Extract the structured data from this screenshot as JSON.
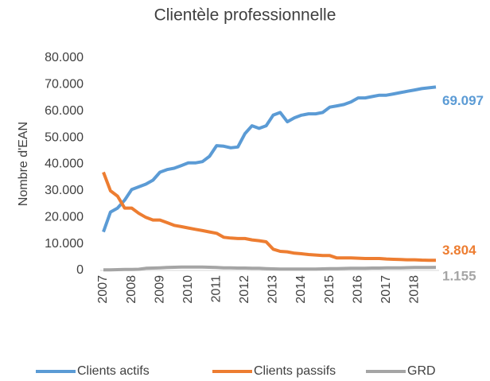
{
  "chart_data": {
    "type": "line",
    "title": "Clientèle professionnelle",
    "y_label": "Nombre d'EAN",
    "categories": [
      "2007",
      null,
      null,
      null,
      "2008",
      null,
      null,
      null,
      "2009",
      null,
      null,
      null,
      "2010",
      null,
      null,
      null,
      "2011",
      null,
      null,
      null,
      "2012",
      null,
      null,
      null,
      "2013",
      null,
      null,
      null,
      "2014",
      null,
      null,
      null,
      "2015",
      null,
      null,
      null,
      "2016",
      null,
      null,
      null,
      "2017",
      null,
      null,
      null,
      "2018",
      null,
      null,
      null
    ],
    "ylim": [
      0,
      80000
    ],
    "yticks": [
      0,
      {
        "value": 10000,
        "label": "10.000"
      },
      {
        "value": 20000,
        "label": "20.000"
      },
      {
        "value": 30000,
        "label": "30.000"
      },
      {
        "value": 40000,
        "label": "40.000"
      },
      {
        "value": 50000,
        "label": "50.000"
      },
      {
        "value": 60000,
        "label": "60.000"
      },
      {
        "value": 70000,
        "label": "70.000"
      },
      {
        "value": 80000,
        "label": "80.000"
      }
    ],
    "grid": false,
    "legend": "bottom",
    "series": [
      {
        "name": "Clients actifs",
        "color": "#5b9bd5",
        "values": [
          14500,
          22000,
          23500,
          26500,
          30500,
          31500,
          32500,
          34000,
          37000,
          38000,
          38500,
          39500,
          40500,
          40500,
          41000,
          43000,
          47000,
          46800,
          46200,
          46500,
          51500,
          54500,
          53500,
          54500,
          58500,
          59500,
          56000,
          57500,
          58500,
          59000,
          59000,
          59500,
          61500,
          62000,
          62500,
          63500,
          65000,
          65000,
          65500,
          66000,
          66000,
          66500,
          67000,
          67500,
          68000,
          68500,
          68800,
          69097
        ],
        "value_labels": [
          null,
          null,
          null,
          null,
          null,
          null,
          null,
          null,
          null,
          null,
          null,
          null,
          null,
          null,
          null,
          null,
          null,
          null,
          null,
          null,
          null,
          null,
          null,
          null,
          null,
          null,
          null,
          null,
          null,
          null,
          null,
          null,
          null,
          null,
          null,
          null,
          null,
          null,
          null,
          null,
          null,
          null,
          null,
          null,
          null,
          null,
          null,
          "69.097"
        ]
      },
      {
        "name": "Clients passifs",
        "color": "#ed7d31",
        "values": [
          37000,
          30000,
          28000,
          23500,
          23500,
          21500,
          20000,
          19000,
          19000,
          18000,
          17000,
          16500,
          16000,
          15500,
          15000,
          14500,
          14000,
          12500,
          12200,
          12000,
          12000,
          11500,
          11200,
          10800,
          8000,
          7200,
          7000,
          6500,
          6300,
          6000,
          5800,
          5600,
          5600,
          4700,
          4700,
          4700,
          4600,
          4500,
          4500,
          4500,
          4300,
          4200,
          4100,
          4000,
          4000,
          3900,
          3850,
          3804
        ],
        "value_labels": [
          null,
          null,
          null,
          null,
          null,
          null,
          null,
          null,
          null,
          null,
          null,
          null,
          null,
          null,
          null,
          null,
          null,
          null,
          null,
          null,
          null,
          null,
          null,
          null,
          null,
          null,
          null,
          null,
          null,
          null,
          null,
          null,
          null,
          null,
          null,
          null,
          null,
          null,
          null,
          null,
          null,
          null,
          null,
          null,
          null,
          null,
          null,
          "3.804"
        ]
      },
      {
        "name": "GRD",
        "color": "#a5a5a5",
        "values": [
          200,
          250,
          300,
          350,
          400,
          450,
          800,
          900,
          1000,
          1100,
          1200,
          1250,
          1300,
          1300,
          1300,
          1200,
          1100,
          1000,
          1000,
          900,
          900,
          850,
          800,
          700,
          600,
          500,
          500,
          500,
          500,
          500,
          550,
          600,
          650,
          700,
          750,
          800,
          850,
          850,
          900,
          900,
          950,
          1000,
          1000,
          1050,
          1100,
          1100,
          1150,
          1155
        ],
        "value_labels": [
          null,
          null,
          null,
          null,
          null,
          null,
          null,
          null,
          null,
          null,
          null,
          null,
          null,
          null,
          null,
          null,
          null,
          null,
          null,
          null,
          null,
          null,
          null,
          null,
          null,
          null,
          null,
          null,
          null,
          null,
          null,
          null,
          null,
          null,
          null,
          null,
          null,
          null,
          null,
          null,
          null,
          null,
          null,
          null,
          null,
          null,
          null,
          "1.155"
        ]
      }
    ]
  }
}
